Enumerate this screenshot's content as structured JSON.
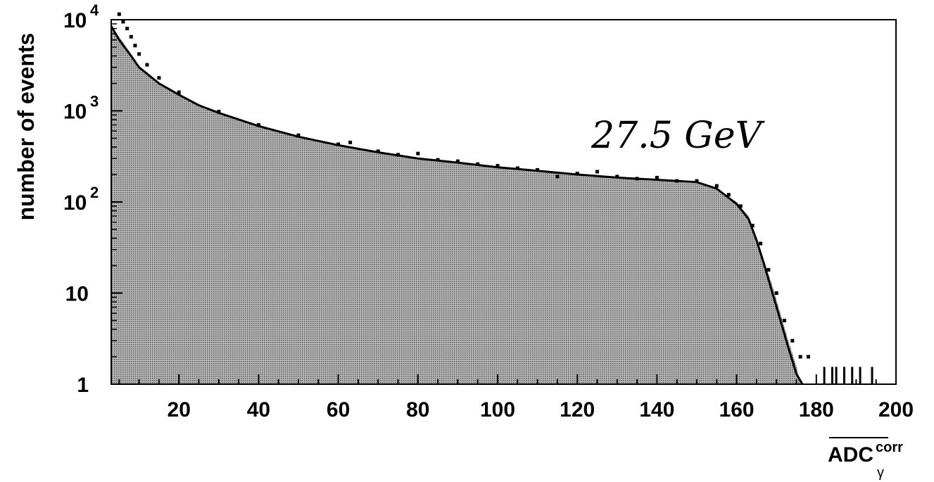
{
  "chart_data": {
    "type": "area",
    "title": "",
    "xlabel_base": "ADC",
    "xlabel_sup": "corr",
    "xlabel_sub": "γ",
    "ylabel": "number of events",
    "annotation": "27.5 GeV",
    "xlim": [
      3,
      200
    ],
    "ylim": [
      1,
      10000
    ],
    "yscale": "log",
    "grid": false,
    "x_ticks": [
      20,
      40,
      60,
      80,
      100,
      120,
      140,
      160,
      180,
      200
    ],
    "y_ticks": [
      {
        "value": 1,
        "base": "1",
        "exp": ""
      },
      {
        "value": 10,
        "base": "10",
        "exp": ""
      },
      {
        "value": 100,
        "base": "10",
        "exp": "2"
      },
      {
        "value": 1000,
        "base": "10",
        "exp": "3"
      },
      {
        "value": 10000,
        "base": "10",
        "exp": "4"
      }
    ],
    "series": [
      {
        "style": "filled-histogram",
        "color": "#9a9a9a",
        "points": [
          [
            3,
            8000
          ],
          [
            5,
            6500
          ],
          [
            8,
            4200
          ],
          [
            10,
            3000
          ],
          [
            15,
            2000
          ],
          [
            20,
            1500
          ],
          [
            25,
            1150
          ],
          [
            30,
            950
          ],
          [
            40,
            680
          ],
          [
            50,
            520
          ],
          [
            60,
            420
          ],
          [
            70,
            350
          ],
          [
            80,
            300
          ],
          [
            90,
            270
          ],
          [
            100,
            240
          ],
          [
            110,
            220
          ],
          [
            120,
            200
          ],
          [
            130,
            185
          ],
          [
            140,
            175
          ],
          [
            150,
            165
          ],
          [
            155,
            140
          ],
          [
            160,
            100
          ],
          [
            163,
            70
          ],
          [
            165,
            40
          ],
          [
            167,
            22
          ],
          [
            169,
            12
          ],
          [
            171,
            6
          ],
          [
            173,
            3
          ],
          [
            175,
            1.6
          ],
          [
            176,
            1.0
          ]
        ]
      },
      {
        "style": "fit-line",
        "color": "#000000",
        "points": [
          [
            3,
            8500
          ],
          [
            5,
            6000
          ],
          [
            8,
            4000
          ],
          [
            10,
            3000
          ],
          [
            15,
            2000
          ],
          [
            20,
            1500
          ],
          [
            25,
            1150
          ],
          [
            30,
            950
          ],
          [
            40,
            680
          ],
          [
            50,
            520
          ],
          [
            60,
            420
          ],
          [
            70,
            350
          ],
          [
            80,
            300
          ],
          [
            90,
            270
          ],
          [
            100,
            240
          ],
          [
            110,
            220
          ],
          [
            120,
            200
          ],
          [
            130,
            185
          ],
          [
            140,
            175
          ],
          [
            150,
            165
          ],
          [
            155,
            140
          ],
          [
            160,
            95
          ],
          [
            163,
            65
          ],
          [
            165,
            38
          ],
          [
            167,
            20
          ],
          [
            169,
            10
          ],
          [
            171,
            5
          ],
          [
            173,
            2.5
          ],
          [
            175,
            1.3
          ],
          [
            176.5,
            1.0
          ]
        ]
      },
      {
        "style": "data-points",
        "color": "#000000",
        "points": [
          [
            5,
            11500
          ],
          [
            6,
            9500
          ],
          [
            7,
            8000
          ],
          [
            8,
            6500
          ],
          [
            9,
            5200
          ],
          [
            10,
            4200
          ],
          [
            12,
            3200
          ],
          [
            15,
            2300
          ],
          [
            20,
            1600
          ],
          [
            30,
            980
          ],
          [
            40,
            700
          ],
          [
            50,
            540
          ],
          [
            60,
            430
          ],
          [
            63,
            450
          ],
          [
            70,
            360
          ],
          [
            75,
            330
          ],
          [
            80,
            340
          ],
          [
            85,
            290
          ],
          [
            90,
            280
          ],
          [
            95,
            260
          ],
          [
            100,
            250
          ],
          [
            105,
            235
          ],
          [
            110,
            225
          ],
          [
            115,
            190
          ],
          [
            120,
            205
          ],
          [
            125,
            215
          ],
          [
            130,
            190
          ],
          [
            135,
            180
          ],
          [
            140,
            185
          ],
          [
            145,
            170
          ],
          [
            150,
            170
          ],
          [
            155,
            150
          ],
          [
            158,
            120
          ],
          [
            161,
            90
          ],
          [
            164,
            55
          ],
          [
            166,
            35
          ],
          [
            168,
            18
          ],
          [
            170,
            10
          ],
          [
            172,
            5
          ],
          [
            174,
            3
          ],
          [
            176,
            2
          ],
          [
            178,
            2
          ]
        ]
      },
      {
        "style": "tail-bars",
        "color": "#000000",
        "x": [
          182,
          184,
          185,
          187,
          189,
          191,
          194
        ]
      }
    ]
  }
}
